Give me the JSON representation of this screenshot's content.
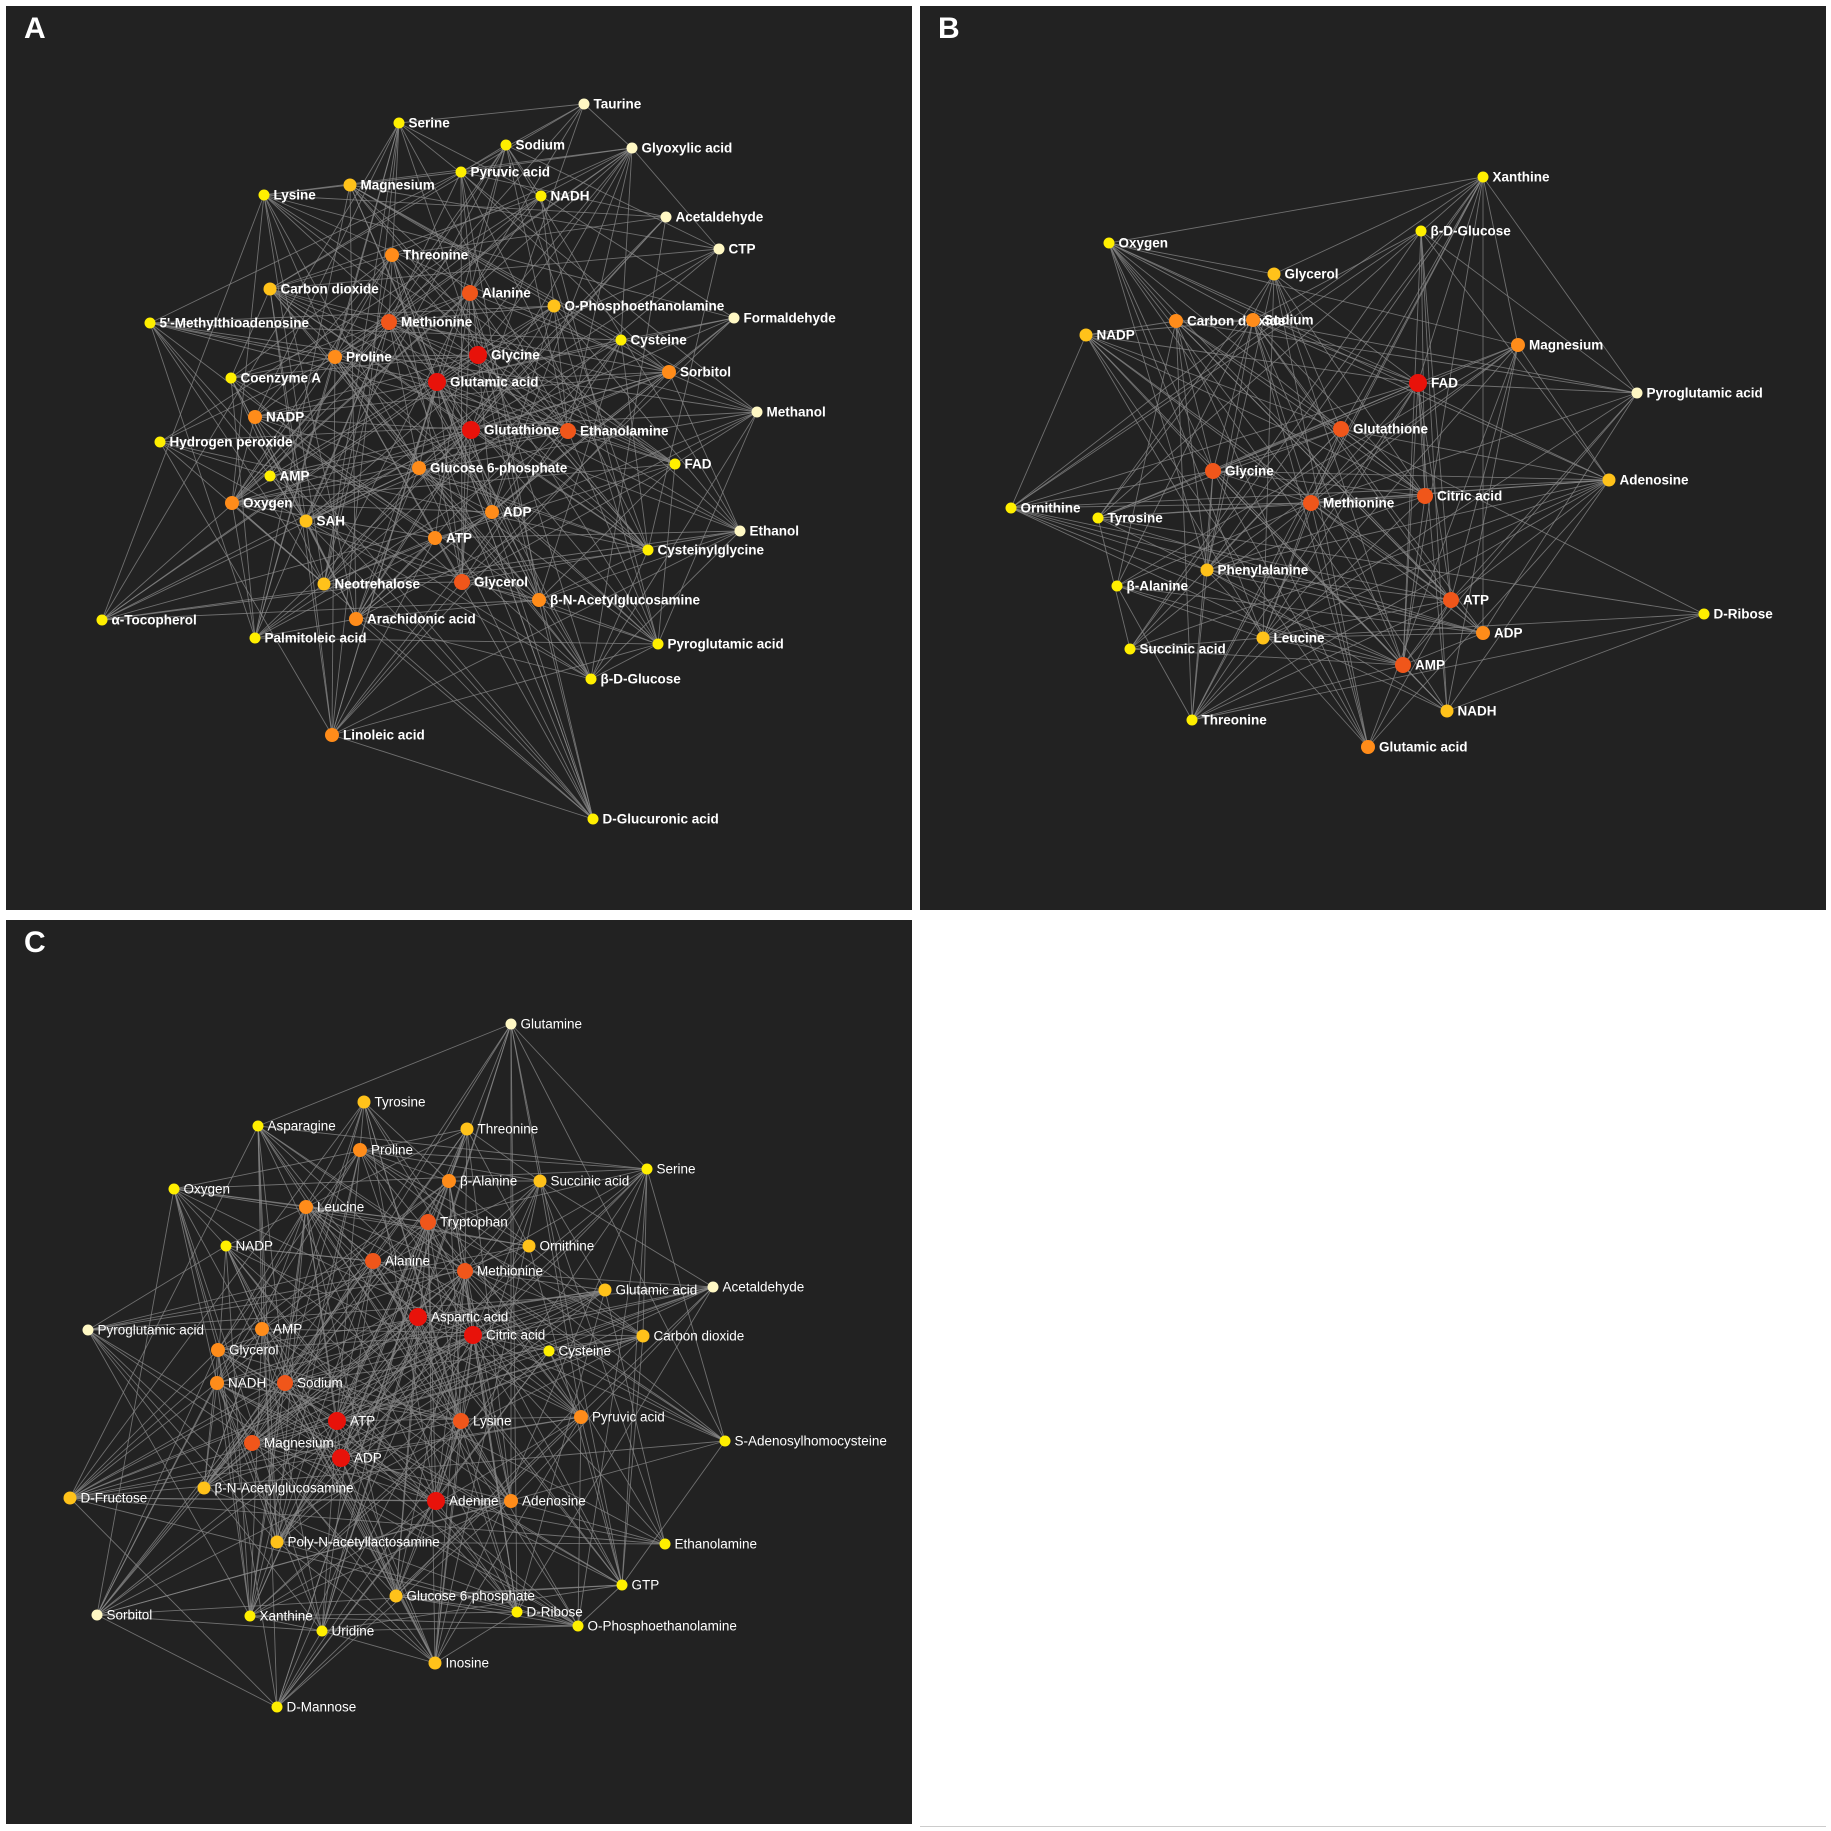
{
  "colors": {
    "background": "#222222",
    "edge": "#8a8a8a",
    "label": "#ffffff",
    "node_scale": [
      "#fff8c4",
      "#ffef00",
      "#ffc21a",
      "#ff8c1a",
      "#f0561a",
      "#e8120a"
    ]
  },
  "legend_note": "",
  "panels": [
    {
      "letter": "A",
      "label_style": "bold",
      "nodes": [
        {
          "label": "Taurine",
          "level": 0
        },
        {
          "label": "Serine",
          "level": 1
        },
        {
          "label": "Sodium",
          "level": 1
        },
        {
          "label": "Glyoxylic acid",
          "level": 0
        },
        {
          "label": "Pyruvic acid",
          "level": 1
        },
        {
          "label": "Magnesium",
          "level": 2
        },
        {
          "label": "Lysine",
          "level": 1
        },
        {
          "label": "NADH",
          "level": 1
        },
        {
          "label": "Acetaldehyde",
          "level": 0
        },
        {
          "label": "CTP",
          "level": 0
        },
        {
          "label": "Threonine",
          "level": 3
        },
        {
          "label": "Carbon dioxide",
          "level": 2
        },
        {
          "label": "Alanine",
          "level": 4
        },
        {
          "label": "O-Phosphoethanolamine",
          "level": 2
        },
        {
          "label": "Formaldehyde",
          "level": 0
        },
        {
          "label": "5'-Methylthioadenosine",
          "level": 1
        },
        {
          "label": "Methionine",
          "level": 4
        },
        {
          "label": "Cysteine",
          "level": 1
        },
        {
          "label": "Proline",
          "level": 3
        },
        {
          "label": "Glycine",
          "level": 5
        },
        {
          "label": "Coenzyme A",
          "level": 1
        },
        {
          "label": "Sorbitol",
          "level": 3
        },
        {
          "label": "Glutamic acid",
          "level": 5
        },
        {
          "label": "NADP",
          "level": 3
        },
        {
          "label": "Glutathione",
          "level": 5
        },
        {
          "label": "Methanol",
          "level": 0
        },
        {
          "label": "Ethanolamine",
          "level": 4
        },
        {
          "label": "Hydrogen peroxide",
          "level": 1
        },
        {
          "label": "FAD",
          "level": 1
        },
        {
          "label": "AMP",
          "level": 1
        },
        {
          "label": "Glucose 6-phosphate",
          "level": 3
        },
        {
          "label": "Oxygen",
          "level": 3
        },
        {
          "label": "ADP",
          "level": 3
        },
        {
          "label": "SAH",
          "level": 2
        },
        {
          "label": "Ethanol",
          "level": 0
        },
        {
          "label": "ATP",
          "level": 3
        },
        {
          "label": "Cysteinylglycine",
          "level": 1
        },
        {
          "label": "Neotrehalose",
          "level": 2
        },
        {
          "label": "Glycerol",
          "level": 4
        },
        {
          "label": "β-N-Acetylglucosamine",
          "level": 3
        },
        {
          "label": "α-Tocopherol",
          "level": 1
        },
        {
          "label": "Arachidonic acid",
          "level": 3
        },
        {
          "label": "Palmitoleic acid",
          "level": 1
        },
        {
          "label": "Pyroglutamic acid",
          "level": 1
        },
        {
          "label": "β-D-Glucose",
          "level": 1
        },
        {
          "label": "Linoleic acid",
          "level": 3
        },
        {
          "label": "D-Glucuronic acid",
          "level": 1
        }
      ]
    },
    {
      "letter": "B",
      "label_style": "bold",
      "nodes": [
        {
          "label": "Xanthine",
          "level": 1
        },
        {
          "label": "β-D-Glucose",
          "level": 1
        },
        {
          "label": "Oxygen",
          "level": 1
        },
        {
          "label": "Glycerol",
          "level": 2
        },
        {
          "label": "NADP",
          "level": 2
        },
        {
          "label": "Carbon dioxide",
          "level": 3
        },
        {
          "label": "Sodium",
          "level": 3
        },
        {
          "label": "Magnesium",
          "level": 3
        },
        {
          "label": "FAD",
          "level": 5
        },
        {
          "label": "Pyroglutamic acid",
          "level": 0
        },
        {
          "label": "Glutathione",
          "level": 4
        },
        {
          "label": "Glycine",
          "level": 4
        },
        {
          "label": "Adenosine",
          "level": 2
        },
        {
          "label": "Ornithine",
          "level": 1
        },
        {
          "label": "Tyrosine",
          "level": 1
        },
        {
          "label": "Methionine",
          "level": 4
        },
        {
          "label": "Citric acid",
          "level": 4
        },
        {
          "label": "Phenylalanine",
          "level": 2
        },
        {
          "label": "β-Alanine",
          "level": 1
        },
        {
          "label": "ATP",
          "level": 4
        },
        {
          "label": "D-Ribose",
          "level": 1
        },
        {
          "label": "ADP",
          "level": 3
        },
        {
          "label": "Succinic acid",
          "level": 1
        },
        {
          "label": "Leucine",
          "level": 2
        },
        {
          "label": "AMP",
          "level": 4
        },
        {
          "label": "NADH",
          "level": 2
        },
        {
          "label": "Threonine",
          "level": 1
        },
        {
          "label": "Glutamic acid",
          "level": 3
        }
      ]
    },
    {
      "letter": "C",
      "label_style": "normal",
      "nodes": [
        {
          "label": "Glutamine",
          "level": 0
        },
        {
          "label": "Tyrosine",
          "level": 2
        },
        {
          "label": "Asparagine",
          "level": 1
        },
        {
          "label": "Threonine",
          "level": 2
        },
        {
          "label": "Proline",
          "level": 3
        },
        {
          "label": "Serine",
          "level": 1
        },
        {
          "label": "β-Alanine",
          "level": 3
        },
        {
          "label": "Succinic acid",
          "level": 2
        },
        {
          "label": "Oxygen",
          "level": 1
        },
        {
          "label": "Leucine",
          "level": 3
        },
        {
          "label": "Tryptophan",
          "level": 4
        },
        {
          "label": "NADP",
          "level": 1
        },
        {
          "label": "Ornithine",
          "level": 2
        },
        {
          "label": "Alanine",
          "level": 4
        },
        {
          "label": "Methionine",
          "level": 4
        },
        {
          "label": "Glutamic acid",
          "level": 2
        },
        {
          "label": "Acetaldehyde",
          "level": 0
        },
        {
          "label": "Aspartic acid",
          "level": 5
        },
        {
          "label": "Pyroglutamic acid",
          "level": 0
        },
        {
          "label": "AMP",
          "level": 3
        },
        {
          "label": "Citric acid",
          "level": 5
        },
        {
          "label": "Carbon dioxide",
          "level": 2
        },
        {
          "label": "Glycerol",
          "level": 3
        },
        {
          "label": "Cysteine",
          "level": 1
        },
        {
          "label": "NADH",
          "level": 3
        },
        {
          "label": "Sodium",
          "level": 4
        },
        {
          "label": "ATP",
          "level": 5
        },
        {
          "label": "Lysine",
          "level": 4
        },
        {
          "label": "Pyruvic acid",
          "level": 3
        },
        {
          "label": "S-Adenosylhomocysteine",
          "level": 1
        },
        {
          "label": "Magnesium",
          "level": 4
        },
        {
          "label": "ADP",
          "level": 5
        },
        {
          "label": "D-Fructose",
          "level": 2
        },
        {
          "label": "β-N-Acetylglucosamine",
          "level": 2
        },
        {
          "label": "Adenine",
          "level": 5
        },
        {
          "label": "Adenosine",
          "level": 3
        },
        {
          "label": "Poly-N-acetyllactosamine",
          "level": 2
        },
        {
          "label": "Ethanolamine",
          "level": 1
        },
        {
          "label": "Glucose 6-phosphate",
          "level": 2
        },
        {
          "label": "GTP",
          "level": 1
        },
        {
          "label": "Sorbitol",
          "level": 0
        },
        {
          "label": "Xanthine",
          "level": 1
        },
        {
          "label": "D-Ribose",
          "level": 1
        },
        {
          "label": "O-Phosphoethanolamine",
          "level": 1
        },
        {
          "label": "Uridine",
          "level": 1
        },
        {
          "label": "Inosine",
          "level": 2
        },
        {
          "label": "D-Mannose",
          "level": 1
        }
      ]
    }
  ]
}
